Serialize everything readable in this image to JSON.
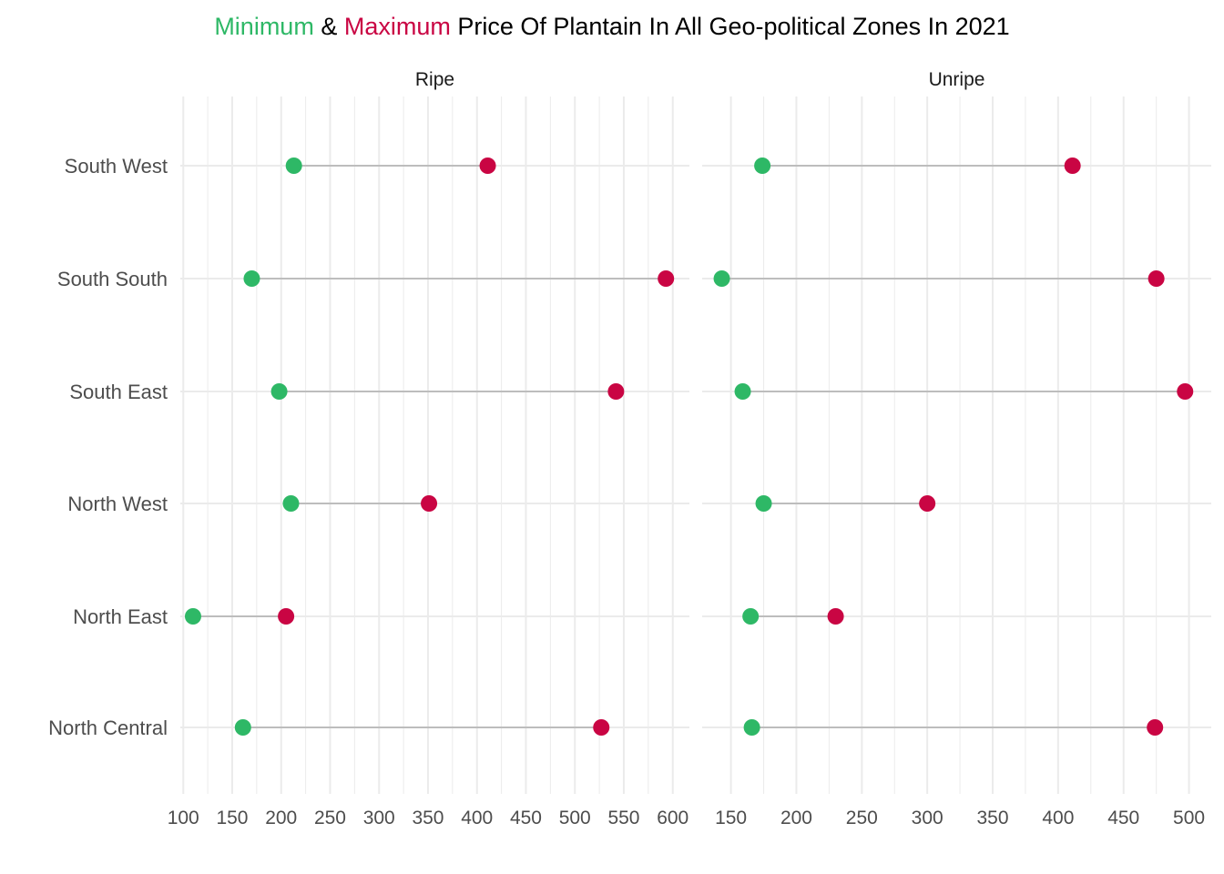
{
  "title": {
    "part_min": "Minimum",
    "part_amp": " & ",
    "part_max": "Maximum",
    "part_rest": " Price Of Plantain In All Geo-political Zones In 2021"
  },
  "colors": {
    "minimum": "#2eb866",
    "maximum": "#c90543",
    "segment": "#bdbdbd",
    "grid": "#ebebeb"
  },
  "chart_data": {
    "type": "dumbbell",
    "zones": [
      "South West",
      "South South",
      "South East",
      "North West",
      "North East",
      "North Central"
    ],
    "facets": [
      {
        "name": "Ripe",
        "xlim": [
          97,
          617
        ],
        "ticks": [
          100,
          150,
          200,
          250,
          300,
          350,
          400,
          450,
          500,
          550,
          600
        ],
        "minimum": [
          213,
          170,
          198,
          210,
          110,
          161
        ],
        "maximum": [
          411,
          593,
          542,
          351,
          205,
          527
        ]
      },
      {
        "name": "Unripe",
        "xlim": [
          128,
          517
        ],
        "ticks": [
          150,
          200,
          250,
          300,
          350,
          400,
          450,
          500
        ],
        "minimum": [
          174,
          143,
          159,
          175,
          165,
          166
        ],
        "maximum": [
          411,
          475,
          497,
          300,
          230,
          474
        ]
      }
    ]
  }
}
